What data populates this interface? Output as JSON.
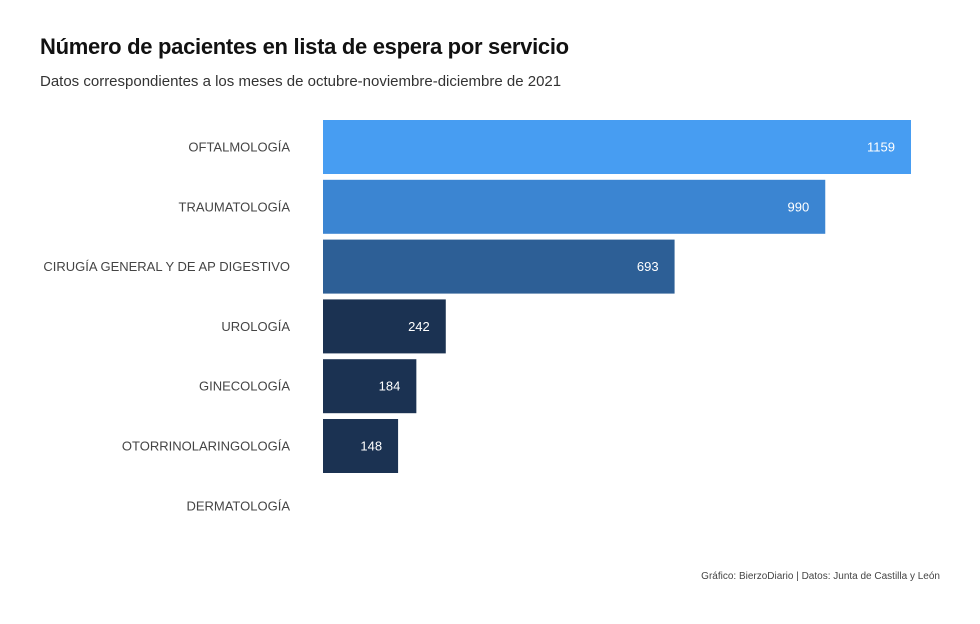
{
  "chart_data": {
    "type": "bar",
    "orientation": "horizontal",
    "title": "Número de pacientes en lista de espera por servicio",
    "subtitle": "Datos correspondientes a los meses de octubre-noviembre-diciembre de 2021",
    "categories": [
      "OFTALMOLOGÍA",
      "TRAUMATOLOGÍA",
      "CIRUGÍA GENERAL Y DE AP DIGESTIVO",
      "UROLOGÍA",
      "GINECOLOGÍA",
      "OTORRINOLARINGOLOGÍA",
      "DERMATOLOGÍA"
    ],
    "values": [
      1159,
      990,
      693,
      242,
      184,
      148,
      null
    ],
    "data_labels": [
      "1159",
      "990",
      "693",
      "242",
      "184",
      "148",
      ""
    ],
    "bar_colors": [
      "#479df2",
      "#3b85d2",
      "#2d5f96",
      "#1b3252",
      "#1b3252",
      "#1b3252",
      "#1b3252"
    ],
    "xlim": [
      0,
      1159
    ],
    "grid": false,
    "legend": "none",
    "credit": "Gráfico: BierzoDiario | Datos: Junta de Castilla y León"
  }
}
